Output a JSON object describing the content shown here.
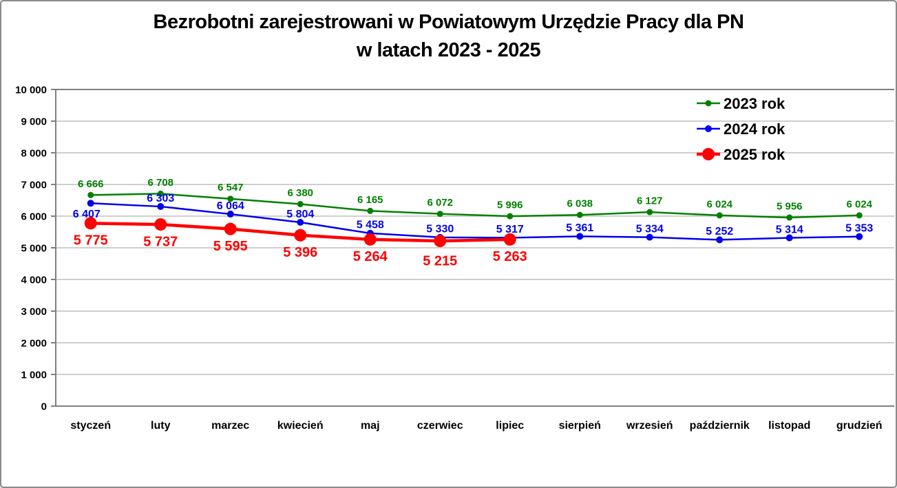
{
  "title": {
    "line1": "Bezrobotni zarejestrowani w Powiatowym Urzędzie Pracy dla PN",
    "line2": "w latach 2023 - 2025"
  },
  "chart_data": {
    "type": "line",
    "title": "Bezrobotni zarejestrowani w Powiatowym Urzędzie Pracy dla PN w latach 2023 - 2025",
    "categories": [
      "styczeń",
      "luty",
      "marzec",
      "kwiecień",
      "maj",
      "czerwiec",
      "lipiec",
      "sierpień",
      "wrzesień",
      "październik",
      "listopad",
      "grudzień"
    ],
    "series": [
      {
        "name": "2023 rok",
        "color": "#008000",
        "values": [
          6666,
          6708,
          6547,
          6380,
          6165,
          6072,
          5996,
          6038,
          6127,
          6024,
          5956,
          6024
        ],
        "labels": [
          "6 666",
          "6 708",
          "6 547",
          "6 380",
          "6 165",
          "6 072",
          "5 996",
          "6 038",
          "6 127",
          "6 024",
          "5 956",
          "6 024"
        ],
        "label_position": "above",
        "label_dy": -17,
        "label_font_size": 15,
        "marker_radius": 4.5,
        "line_width": 2.5,
        "label_overrides": {}
      },
      {
        "name": "2024 rok",
        "color": "#0000EE",
        "values": [
          6407,
          6303,
          6064,
          5804,
          5458,
          5330,
          5317,
          5361,
          5334,
          5252,
          5314,
          5353
        ],
        "labels": [
          "6 407",
          "6 303",
          "6 064",
          "5 804",
          "5 458",
          "5 330",
          "5 317",
          "5 361",
          "5 334",
          "5 252",
          "5 314",
          "5 353"
        ],
        "label_position": "above",
        "label_dy": -13,
        "label_font_size": 16,
        "marker_radius": 5,
        "line_width": 2.5,
        "label_overrides": {
          "0": {
            "dx": -6,
            "dy": 15
          }
        }
      },
      {
        "name": "2025 rok",
        "color": "#FF0000",
        "values": [
          5775,
          5737,
          5595,
          5396,
          5264,
          5215,
          5263
        ],
        "labels": [
          "5 775",
          "5 737",
          "5 595",
          "5 396",
          "5 264",
          "5 215",
          "5 263"
        ],
        "label_position": "below",
        "label_dy": 24,
        "label_font_size": 20,
        "marker_radius": 9,
        "line_width": 4.5,
        "label_overrides": {
          "5": {
            "dx": 0,
            "dy": 28
          }
        }
      }
    ],
    "y_axis": {
      "min": 0,
      "max": 10000,
      "step": 1000,
      "tick_labels": [
        "0",
        "1 000",
        "2 000",
        "3 000",
        "4 000",
        "5 000",
        "6 000",
        "7 000",
        "8 000",
        "9 000",
        "10 000"
      ]
    },
    "x_axis": {
      "label": ""
    },
    "grid": true,
    "legend": {
      "position": "upper-right",
      "entries": [
        "2023 rok",
        "2024 rok",
        "2025 rok"
      ]
    }
  },
  "colors": {
    "grid_line": "#BFBFBF",
    "axis_line": "#7F7F7F",
    "text": "#000000",
    "background": "#FFFFFF",
    "frame_border": "#8A8A8A"
  }
}
